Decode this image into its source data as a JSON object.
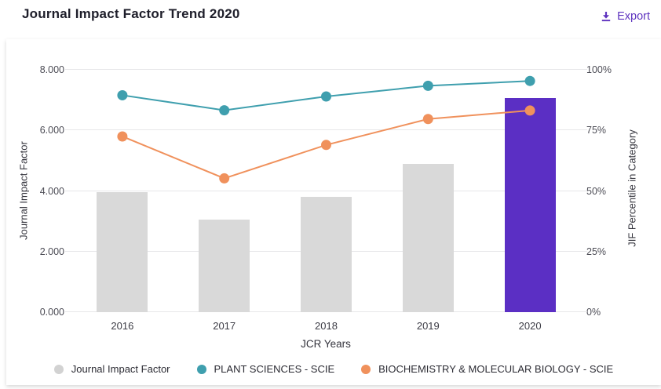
{
  "header": {
    "title": "Journal Impact Factor Trend 2020",
    "export_label": "Export"
  },
  "colors": {
    "accent_purple": "#5e33bf",
    "bar_gray": "#d9d9d9",
    "bar_highlight_purple": "#5b2fc4",
    "plant_sciences_teal": "#3f9fae",
    "biochemistry_orange": "#f0915c",
    "legend_jif_dot_gray": "#d2d2d2",
    "gridline": "#e7e7e9"
  },
  "chart_data": {
    "type": "combo-bar-line",
    "categories": [
      "2016",
      "2017",
      "2018",
      "2019",
      "2020"
    ],
    "series": [
      {
        "name": "Journal Impact Factor",
        "type": "bar",
        "axis": "left",
        "values": [
          3.96,
          3.06,
          3.81,
          4.89,
          7.06
        ],
        "color": "#d9d9d9",
        "highlight_color": "#5b2fc4",
        "highlight_index": 4
      },
      {
        "name": "PLANT SCIENCES - SCIE",
        "type": "line",
        "axis": "right",
        "values": [
          89.5,
          83.3,
          89.0,
          93.4,
          95.4
        ],
        "color": "#3f9fae"
      },
      {
        "name": "BIOCHEMISTRY & MOLECULAR BIOLOGY - SCIE",
        "type": "line",
        "axis": "right",
        "values": [
          72.5,
          55.2,
          69.0,
          79.7,
          83.2
        ],
        "color": "#f0915c"
      }
    ],
    "left_axis": {
      "label": "Journal Impact Factor",
      "min": 0,
      "max": 8,
      "ticks": [
        "0.000",
        "2.000",
        "4.000",
        "6.000",
        "8.000"
      ]
    },
    "right_axis": {
      "label": "JIF Percentile in Category",
      "min": 0,
      "max": 100,
      "ticks": [
        "0%",
        "25%",
        "50%",
        "75%",
        "100%"
      ]
    },
    "xlabel": "JCR Years",
    "grid": true,
    "legend_position": "bottom"
  }
}
